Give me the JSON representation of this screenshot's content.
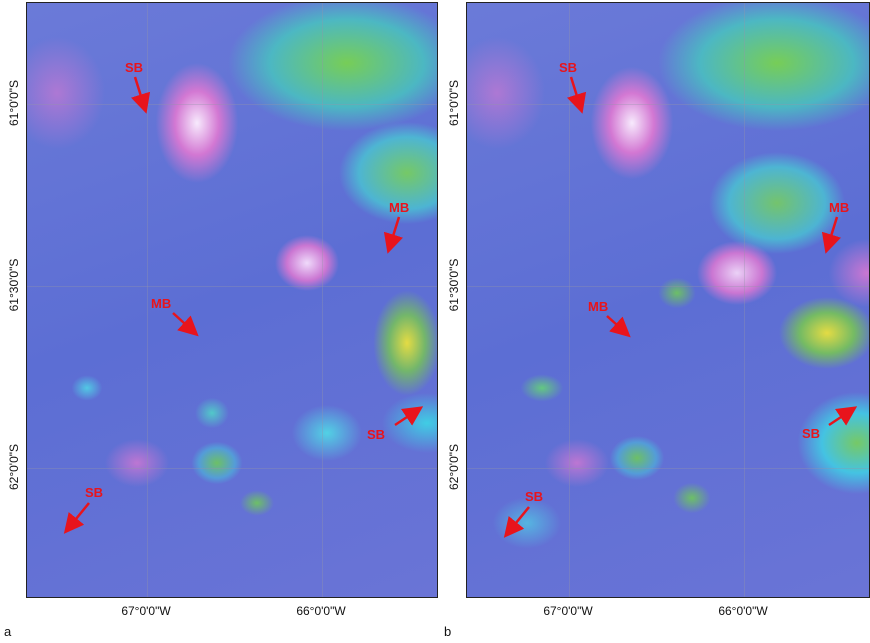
{
  "panels": [
    {
      "label": "a",
      "lat_labels": [
        "61°0'0\"S",
        "61°30'0\"S",
        "62°0'0\"S"
      ],
      "lon_labels": [
        "67°0'0\"W",
        "66°0'0\"W"
      ],
      "annotations": [
        "SB",
        "MB",
        "MB",
        "SB",
        "SB"
      ]
    },
    {
      "label": "b",
      "lat_labels": [
        "61°0'0\"S",
        "61°30'0\"S",
        "62°0'0\"S"
      ],
      "lon_labels": [
        "67°0'0\"W",
        "66°0'0\"W"
      ],
      "annotations": [
        "SB",
        "MB",
        "MB",
        "SB",
        "SB"
      ]
    }
  ],
  "colors": {
    "arrow": "#e8141c",
    "base_blue": "#5b6fd6",
    "pink": "#e07ad0",
    "green": "#6fc84f",
    "cyan": "#3fd3e6",
    "yellow": "#f2e23a"
  }
}
